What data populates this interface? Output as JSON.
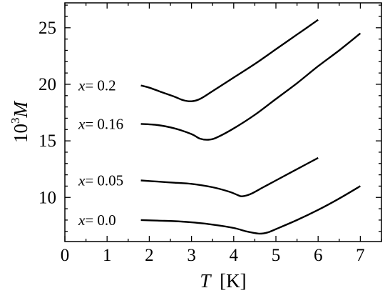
{
  "chart_data": {
    "type": "line",
    "title": "",
    "xlabel": {
      "symbol": "T",
      "unit": "[K]"
    },
    "ylabel": {
      "prefix": "10",
      "exponent": "3",
      "symbol": "M"
    },
    "xlim": [
      0,
      7.5
    ],
    "ylim": [
      6.1,
      27.2
    ],
    "x_ticks": [
      0,
      1,
      2,
      3,
      4,
      5,
      6,
      7
    ],
    "y_ticks": [
      10,
      15,
      20,
      25
    ],
    "x_minor_step": 0.5,
    "y_minor_step": 1,
    "grid": false,
    "legend": "none",
    "color": "#000000",
    "series": [
      {
        "label_var": "x",
        "label_val": "= 0.2",
        "x": [
          1.8,
          2.0,
          2.3,
          2.6,
          2.8,
          3.0,
          3.2,
          3.5,
          4.0,
          4.5,
          5.0,
          5.5,
          6.0
        ],
        "y": [
          19.9,
          19.7,
          19.3,
          18.9,
          18.6,
          18.5,
          18.7,
          19.4,
          20.6,
          21.8,
          23.1,
          24.4,
          25.7
        ]
      },
      {
        "label_var": "x",
        "label_val": "= 0.16",
        "x": [
          1.8,
          2.2,
          2.6,
          3.0,
          3.2,
          3.4,
          3.6,
          4.0,
          4.5,
          5.0,
          5.5,
          6.0,
          6.5,
          7.0
        ],
        "y": [
          16.5,
          16.4,
          16.1,
          15.6,
          15.2,
          15.1,
          15.3,
          16.1,
          17.3,
          18.7,
          20.1,
          21.6,
          23.0,
          24.5
        ]
      },
      {
        "label_var": "x",
        "label_val": "= 0.05",
        "x": [
          1.8,
          2.2,
          2.6,
          3.0,
          3.5,
          3.9,
          4.1,
          4.2,
          4.4,
          4.7,
          5.0,
          5.5,
          6.0
        ],
        "y": [
          11.5,
          11.4,
          11.3,
          11.2,
          10.9,
          10.5,
          10.2,
          10.1,
          10.3,
          10.9,
          11.5,
          12.5,
          13.5
        ]
      },
      {
        "label_var": "x",
        "label_val": "= 0.0",
        "x": [
          1.8,
          2.2,
          2.6,
          3.0,
          3.5,
          4.0,
          4.3,
          4.6,
          4.8,
          5.0,
          5.5,
          6.0,
          6.5,
          7.0
        ],
        "y": [
          8.0,
          7.95,
          7.9,
          7.8,
          7.6,
          7.3,
          7.0,
          6.8,
          6.9,
          7.2,
          8.0,
          8.9,
          9.9,
          11.0
        ]
      }
    ]
  }
}
